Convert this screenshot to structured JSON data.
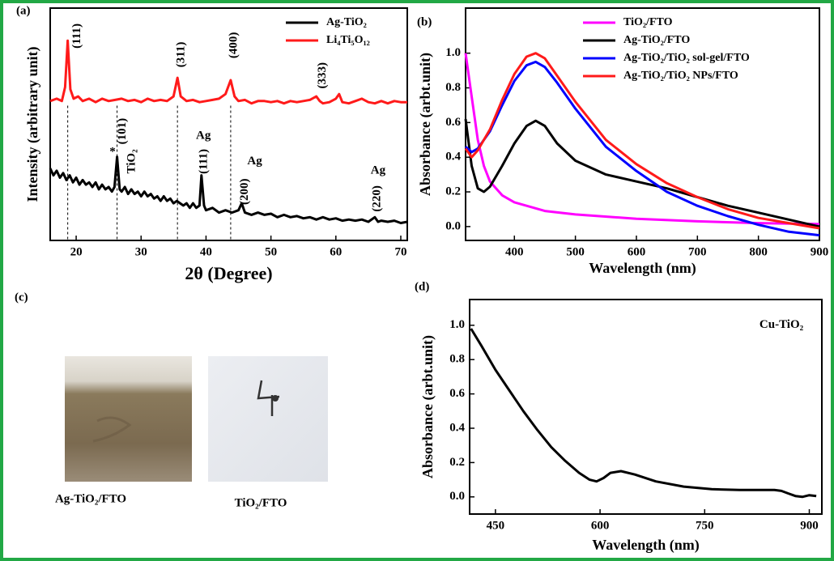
{
  "chart_data": [
    {
      "type": "line",
      "panel_label": "(a)",
      "x_label": "2θ (Degree)",
      "y_label": "Intensity (arbitrary unit)",
      "xlim": [
        16,
        71
      ],
      "ylim": [
        0,
        100
      ],
      "xticks": [
        20,
        30,
        40,
        50,
        60,
        70
      ],
      "legend": "upper right",
      "series": [
        {
          "name": "Ag-TiO₂",
          "color": "#000000",
          "x": [
            16,
            16.5,
            17,
            17.5,
            18,
            18.5,
            19,
            19.5,
            20,
            20.5,
            21,
            21.5,
            22,
            22.5,
            23,
            23.5,
            24,
            24.5,
            25,
            25.5,
            25.9,
            26.3,
            26.7,
            27,
            27.5,
            28,
            28.5,
            29,
            29.5,
            30,
            30.5,
            31,
            31.5,
            32,
            32.5,
            33,
            33.5,
            34,
            34.5,
            35,
            35.5,
            36,
            36.5,
            37,
            37.5,
            38,
            38.5,
            39,
            39.3,
            39.7,
            40,
            41,
            42,
            43,
            44,
            45,
            45.5,
            46,
            47,
            48,
            49,
            50,
            51,
            52,
            53,
            54,
            55,
            56,
            57,
            58,
            59,
            60,
            61,
            62,
            63,
            64,
            65,
            66,
            66.5,
            67,
            68,
            69,
            70,
            71
          ],
          "values": [
            31,
            28,
            30,
            27,
            29,
            26,
            28,
            25,
            27,
            24,
            26,
            24,
            25,
            23,
            25,
            22,
            24,
            22,
            23,
            21,
            23,
            36,
            22,
            21,
            23,
            20,
            22,
            20,
            21,
            19,
            21,
            19,
            20,
            18,
            19,
            17,
            19,
            17,
            18,
            16,
            17,
            16,
            15,
            16,
            14,
            16,
            14,
            15,
            28,
            15,
            13,
            14,
            12,
            13,
            12,
            13,
            16,
            12,
            11,
            12,
            11,
            11.5,
            10,
            11,
            10,
            10.5,
            9.5,
            10,
            9,
            10,
            9,
            9.5,
            8.5,
            9,
            8.5,
            9,
            8,
            10,
            8,
            8.5,
            8,
            8.5,
            7.5,
            8
          ]
        },
        {
          "name": "Li₄Ti₅O₁₂",
          "color": "#ff1a1a",
          "x": [
            16,
            17,
            17.8,
            18.3,
            18.7,
            19.1,
            19.6,
            20.3,
            21,
            22,
            23,
            24,
            25,
            26,
            27,
            28,
            29,
            30,
            31,
            32,
            33,
            34,
            35,
            35.6,
            36.1,
            37,
            38,
            39,
            40,
            41,
            42,
            43,
            43.8,
            44.4,
            45,
            46,
            47,
            48,
            49,
            50,
            51,
            52,
            53,
            54,
            55,
            56,
            57,
            57.5,
            58,
            59,
            60,
            60.5,
            61,
            62,
            63,
            64,
            65,
            66,
            67,
            68,
            69,
            70,
            71
          ],
          "values": [
            60,
            61,
            60,
            66,
            86,
            65,
            61,
            62,
            60,
            61,
            59.5,
            61,
            60,
            60.5,
            61,
            60,
            60.5,
            59.5,
            61,
            60,
            60.5,
            60,
            62,
            70,
            62,
            60,
            60.5,
            59.5,
            60,
            60.5,
            61,
            63,
            69,
            62,
            60,
            60.5,
            59,
            60,
            60,
            59.5,
            60,
            59,
            60,
            59.5,
            60,
            60.5,
            62,
            60,
            59,
            59.5,
            61,
            63,
            59.5,
            59,
            60,
            61,
            59.5,
            59,
            60,
            59,
            60,
            59.5,
            59.5
          ]
        }
      ],
      "reference_lines": [
        18.7,
        26.3,
        35.6,
        43.8
      ],
      "annotations": [
        {
          "text": "(111)",
          "x": 20.2,
          "y": 88,
          "rotate": true
        },
        {
          "text": "(311)",
          "x": 36.2,
          "y": 80,
          "rotate": true
        },
        {
          "text": "(400)",
          "x": 44.3,
          "y": 84,
          "rotate": true
        },
        {
          "text": "(333)",
          "x": 58,
          "y": 71,
          "rotate": true
        },
        {
          "text": "*",
          "x": 25.6,
          "y": 38,
          "rotate": false
        },
        {
          "text": "(101)",
          "x": 27.2,
          "y": 47,
          "rotate": true
        },
        {
          "text": "TiO₂",
          "x": 28.6,
          "y": 34,
          "rotate": true
        },
        {
          "text": "Ag",
          "x": 39.6,
          "y": 45,
          "rotate": false
        },
        {
          "text": "(111)",
          "x": 39.7,
          "y": 34,
          "rotate": true
        },
        {
          "text": "Ag",
          "x": 47.5,
          "y": 34,
          "rotate": false
        },
        {
          "text": "(200)",
          "x": 46,
          "y": 21,
          "rotate": true
        },
        {
          "text": "Ag",
          "x": 66.5,
          "y": 30,
          "rotate": false
        },
        {
          "text": "(220)",
          "x": 66.4,
          "y": 18,
          "rotate": true
        }
      ]
    },
    {
      "type": "line",
      "panel_label": "(b)",
      "x_label": "Wavelength (nm)",
      "y_label": "Absorbance (arbt.unit)",
      "xlim": [
        320,
        900
      ],
      "ylim": [
        -0.08,
        1.26
      ],
      "xticks": [
        400,
        500,
        600,
        700,
        800,
        900
      ],
      "yticks": [
        {
          "value": 0,
          "label": "0.0"
        },
        {
          "value": 0.2,
          "label": "0.2"
        },
        {
          "value": 0.4,
          "label": "0.4"
        },
        {
          "value": 0.6,
          "label": "0.6"
        },
        {
          "value": 0.8,
          "label": "0.8"
        },
        {
          "value": 1.0,
          "label": "1.0"
        }
      ],
      "legend": "upper center",
      "series": [
        {
          "name": "TiO₂/FTO",
          "color": "#ff00ff",
          "x": [
            320,
            330,
            340,
            350,
            360,
            380,
            400,
            450,
            500,
            600,
            700,
            800,
            900
          ],
          "values": [
            1.0,
            0.75,
            0.5,
            0.35,
            0.26,
            0.18,
            0.14,
            0.09,
            0.07,
            0.045,
            0.03,
            0.02,
            0.015
          ]
        },
        {
          "name": "Ag-TiO₂/FTO",
          "color": "#000000",
          "x": [
            320,
            330,
            340,
            350,
            360,
            380,
            400,
            420,
            435,
            450,
            470,
            500,
            550,
            600,
            650,
            700,
            750,
            800,
            850,
            900
          ],
          "values": [
            0.62,
            0.35,
            0.22,
            0.2,
            0.23,
            0.35,
            0.48,
            0.58,
            0.61,
            0.58,
            0.48,
            0.38,
            0.3,
            0.26,
            0.22,
            0.17,
            0.12,
            0.08,
            0.04,
            0.0
          ]
        },
        {
          "name": "Ag-TiO₂/TiO₂ sol-gel/FTO",
          "color": "#0000ff",
          "x": [
            320,
            330,
            340,
            360,
            380,
            400,
            420,
            435,
            450,
            470,
            500,
            550,
            600,
            650,
            700,
            750,
            800,
            850,
            900
          ],
          "values": [
            0.46,
            0.43,
            0.45,
            0.55,
            0.7,
            0.84,
            0.93,
            0.95,
            0.92,
            0.83,
            0.68,
            0.46,
            0.32,
            0.2,
            0.12,
            0.06,
            0.01,
            -0.03,
            -0.05
          ]
        },
        {
          "name": "Ag-TiO₂/TiO₂ NPs/FTO",
          "color": "#ff1a1a",
          "x": [
            320,
            330,
            340,
            360,
            380,
            400,
            420,
            435,
            450,
            470,
            500,
            550,
            600,
            650,
            700,
            750,
            800,
            850,
            900
          ],
          "values": [
            0.45,
            0.4,
            0.44,
            0.56,
            0.73,
            0.88,
            0.98,
            1.0,
            0.97,
            0.87,
            0.72,
            0.5,
            0.36,
            0.25,
            0.17,
            0.1,
            0.05,
            0.02,
            -0.01
          ]
        }
      ]
    },
    {
      "type": "line",
      "panel_label": "(d)",
      "x_label": "Wavelength (nm)",
      "y_label": "Absorbance (arbt.unit)",
      "xlim": [
        413,
        918
      ],
      "ylim": [
        -0.1,
        1.15
      ],
      "xticks": [
        450,
        600,
        750,
        900
      ],
      "yticks": [
        {
          "value": 0,
          "label": "0.0"
        },
        {
          "value": 0.2,
          "label": "0.2"
        },
        {
          "value": 0.4,
          "label": "0.4"
        },
        {
          "value": 0.6,
          "label": "0.6"
        },
        {
          "value": 0.8,
          "label": "0.8"
        },
        {
          "value": 1.0,
          "label": "1.0"
        }
      ],
      "series": [
        {
          "color": "#000000",
          "x": [
            415,
            430,
            450,
            470,
            490,
            510,
            530,
            550,
            570,
            585,
            595,
            605,
            615,
            630,
            650,
            680,
            720,
            760,
            800,
            850,
            860,
            870,
            880,
            890,
            900,
            910
          ],
          "values": [
            0.98,
            0.88,
            0.74,
            0.62,
            0.5,
            0.39,
            0.29,
            0.21,
            0.14,
            0.1,
            0.09,
            0.11,
            0.14,
            0.15,
            0.13,
            0.09,
            0.06,
            0.045,
            0.04,
            0.04,
            0.035,
            0.02,
            0.005,
            0.0,
            0.01,
            0.005
          ]
        }
      ],
      "annotations": [
        {
          "text": "Cu-TiO₂",
          "x": 860,
          "y": 1.0,
          "rotate": false
        }
      ]
    }
  ],
  "photos": {
    "panel_label": "(c)",
    "captions": [
      "Ag-TiO₂/FTO",
      "TiO₂/FTO"
    ]
  }
}
